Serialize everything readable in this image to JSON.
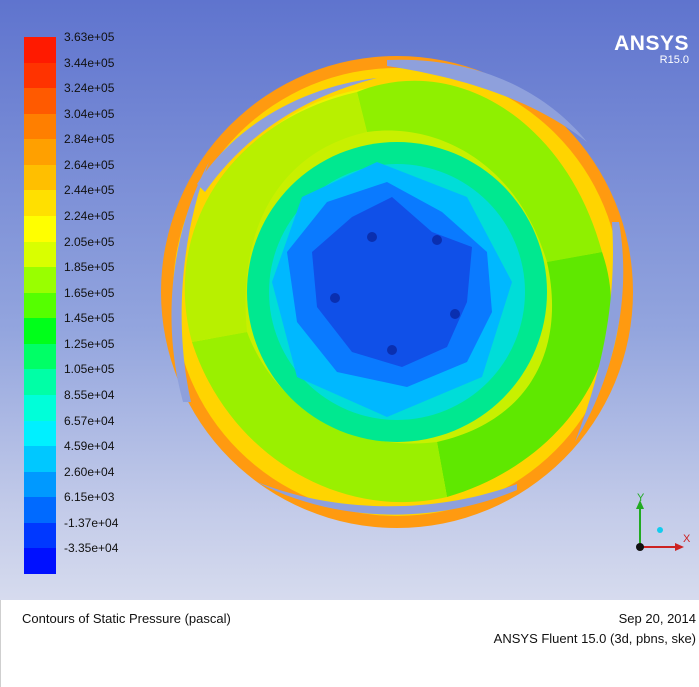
{
  "legend": {
    "labels": [
      "3.63e+05",
      "3.44e+05",
      "3.24e+05",
      "3.04e+05",
      "2.84e+05",
      "2.64e+05",
      "2.44e+05",
      "2.24e+05",
      "2.05e+05",
      "1.85e+05",
      "1.65e+05",
      "1.45e+05",
      "1.25e+05",
      "1.05e+05",
      "8.55e+04",
      "6.57e+04",
      "4.59e+04",
      "2.60e+04",
      "6.15e+03",
      "-1.37e+04",
      "-3.35e+04"
    ],
    "colors": [
      "#ff1a00",
      "#ff3300",
      "#ff5a00",
      "#ff7f00",
      "#ffa000",
      "#ffbf00",
      "#ffe000",
      "#ffff00",
      "#d9ff00",
      "#99ff00",
      "#55ff00",
      "#00ff1a",
      "#00ff66",
      "#00ffa6",
      "#00ffd9",
      "#00f0ff",
      "#00c8ff",
      "#0099ff",
      "#006aff",
      "#0038ff",
      "#0010ff"
    ]
  },
  "brand": {
    "name": "ANSYS",
    "release": "R15.0"
  },
  "axes": {
    "x_label": "X",
    "y_label": "Y"
  },
  "footer": {
    "title": "Contours of Static Pressure (pascal)",
    "date": "Sep 20, 2014",
    "solver": "ANSYS Fluent 15.0 (3d, pbns, ske)"
  }
}
